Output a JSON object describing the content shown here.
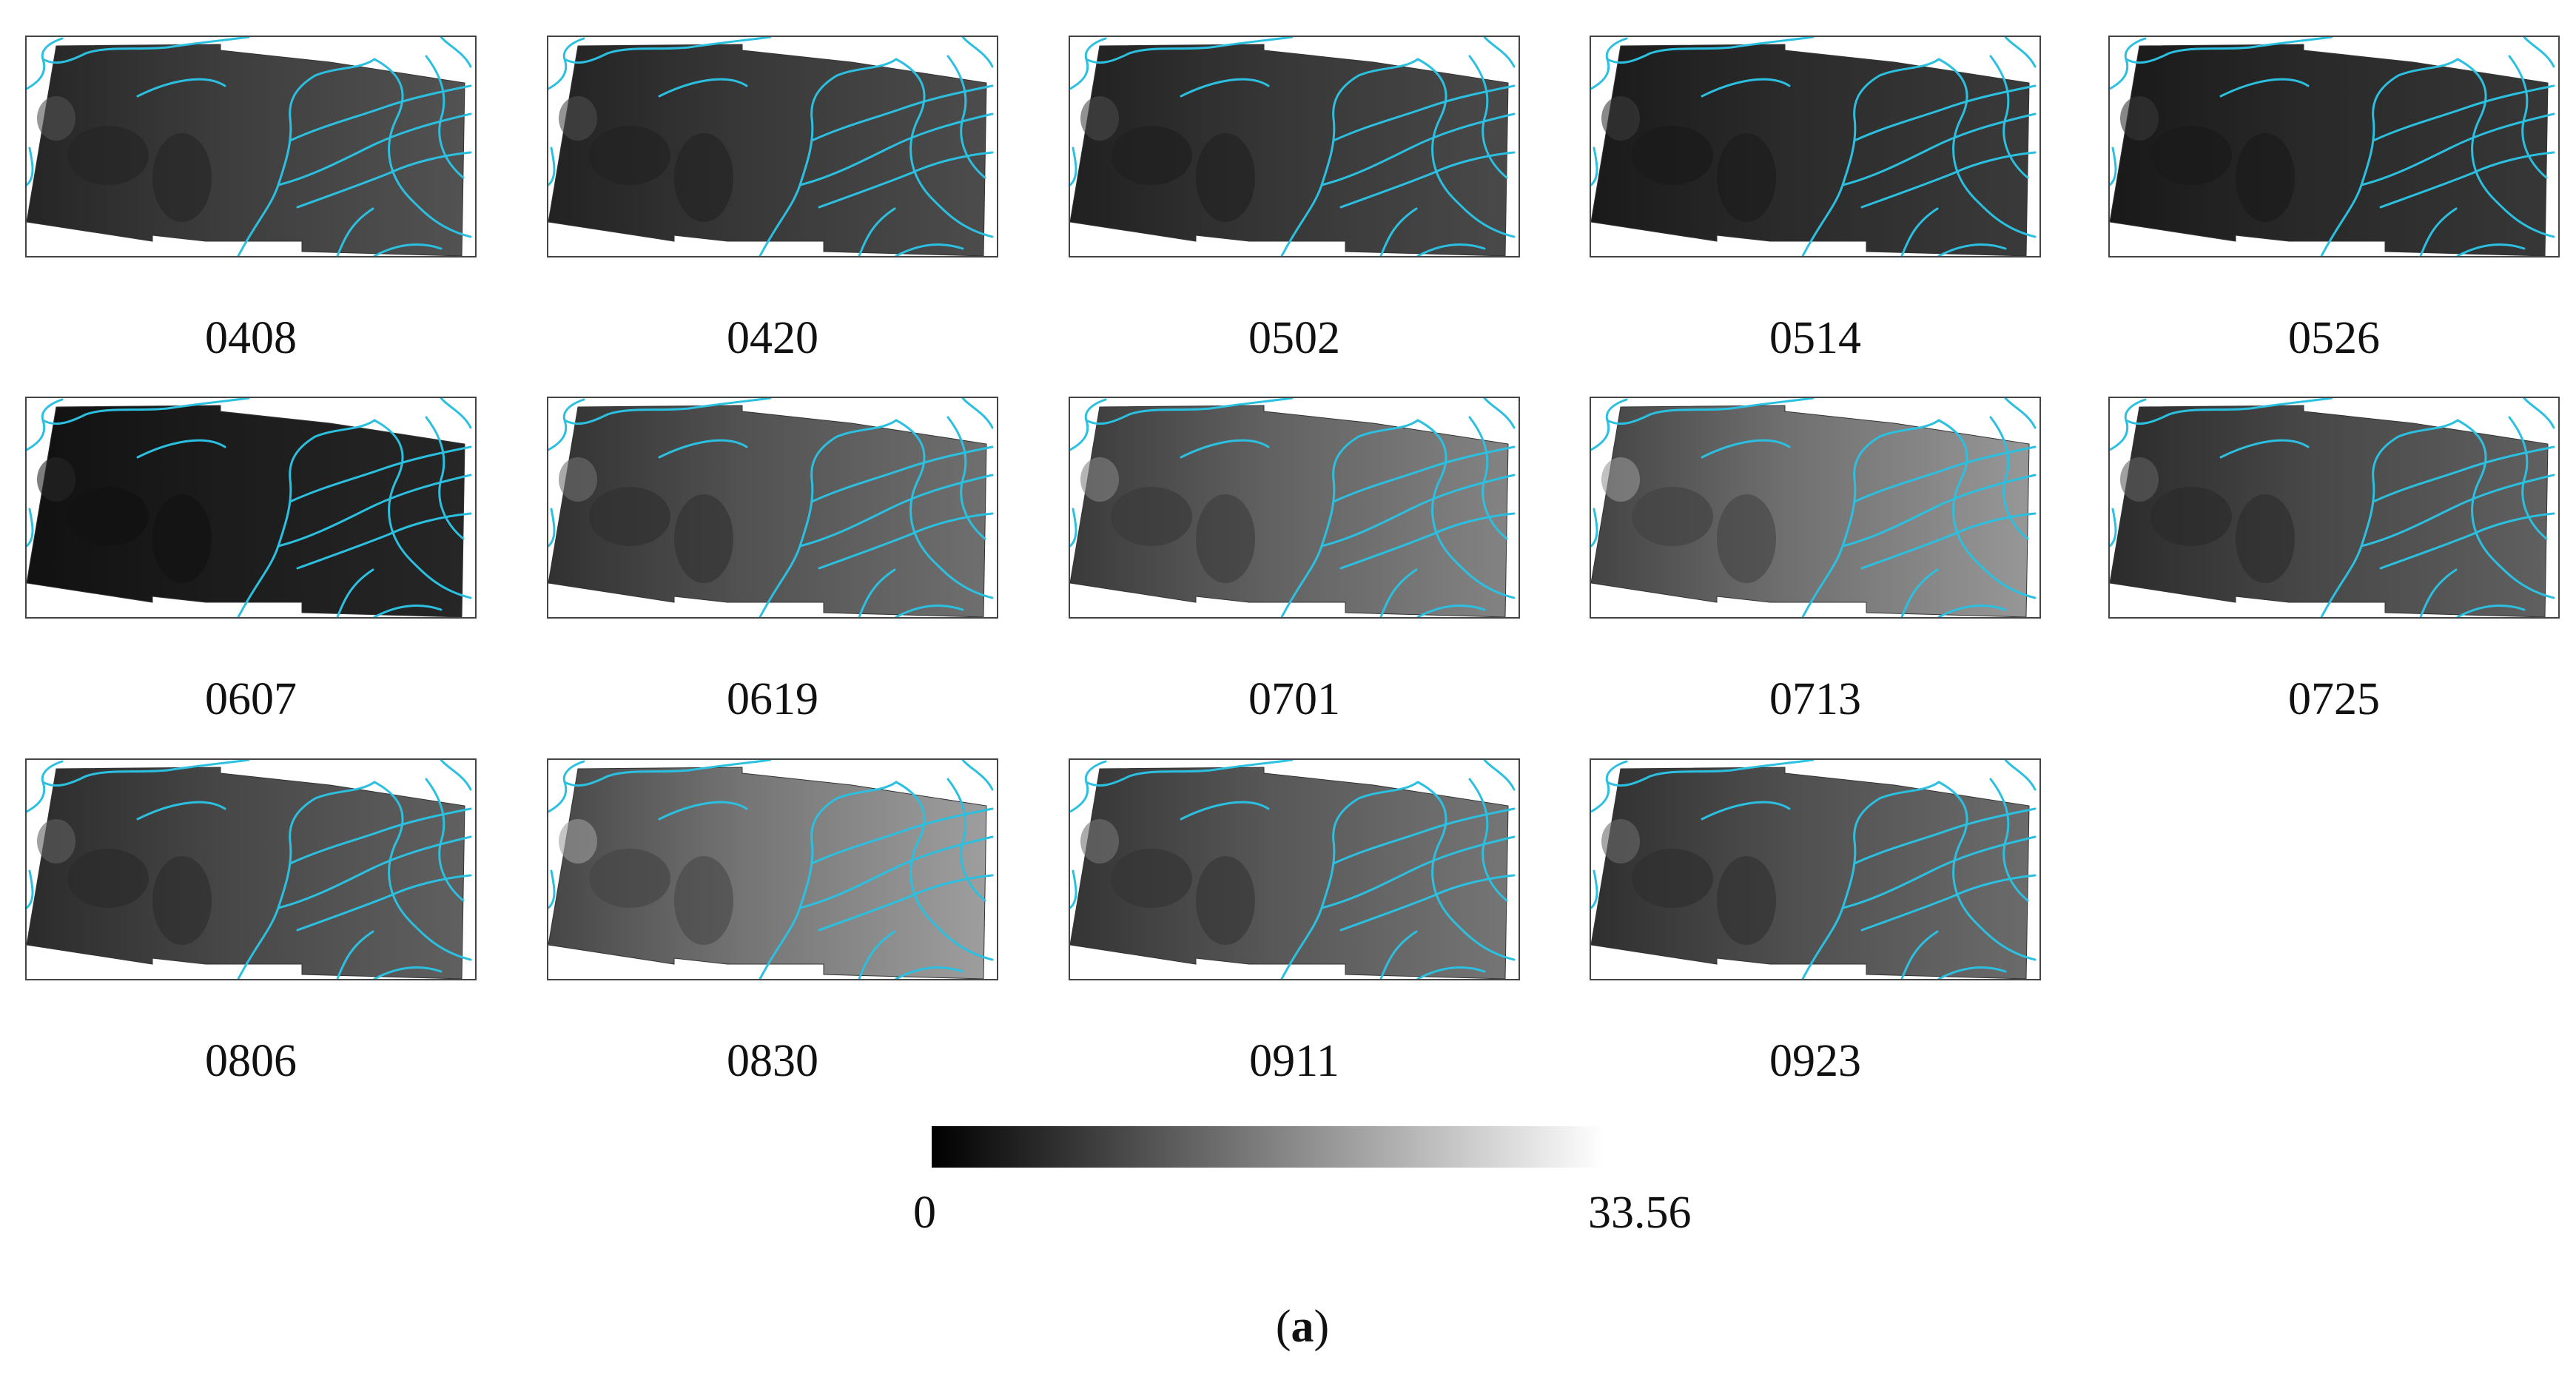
{
  "panels": [
    {
      "date": "0408",
      "brightness": 0.24
    },
    {
      "date": "0420",
      "brightness": 0.22
    },
    {
      "date": "0502",
      "brightness": 0.21
    },
    {
      "date": "0514",
      "brightness": 0.17
    },
    {
      "date": "0526",
      "brightness": 0.16
    },
    {
      "date": "0607",
      "brightness": 0.11
    },
    {
      "date": "0619",
      "brightness": 0.32
    },
    {
      "date": "0701",
      "brightness": 0.38
    },
    {
      "date": "0713",
      "brightness": 0.44
    },
    {
      "date": "0725",
      "brightness": 0.28
    },
    {
      "date": "0806",
      "brightness": 0.28
    },
    {
      "date": "0830",
      "brightness": 0.46
    },
    {
      "date": "0911",
      "brightness": 0.34
    },
    {
      "date": "0923",
      "brightness": 0.31
    }
  ],
  "colorbar": {
    "min": "0",
    "max": "33.56"
  },
  "caption": {
    "open": "(",
    "letter": "a",
    "close": ")"
  },
  "colors": {
    "river": "#2cc0e0",
    "frame": "#444444",
    "scene_dark": "#1a1a1a"
  }
}
